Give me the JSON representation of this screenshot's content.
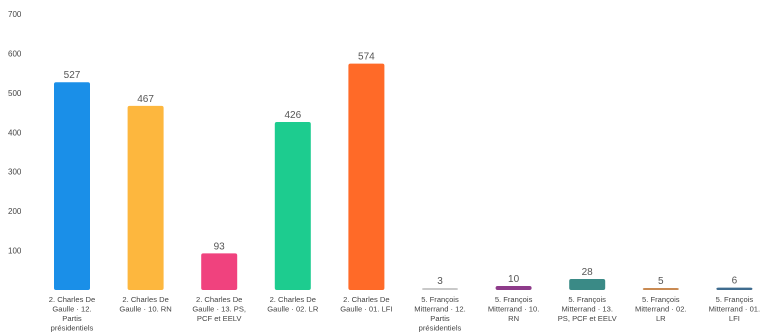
{
  "chart_data": {
    "type": "bar",
    "categories": [
      [
        "2. Charles De",
        "Gaulle · 12.",
        "Partis",
        "présidentiels"
      ],
      [
        "2. Charles De",
        "Gaulle · 10. RN"
      ],
      [
        "2. Charles De",
        "Gaulle · 13. PS,",
        "PCF et EELV"
      ],
      [
        "2. Charles De",
        "Gaulle · 02. LR"
      ],
      [
        "2. Charles De",
        "Gaulle · 01. LFI"
      ],
      [
        "5. François",
        "Mitterrand · 12.",
        "Partis",
        "présidentiels"
      ],
      [
        "5. François",
        "Mitterrand · 10.",
        "RN"
      ],
      [
        "5. François",
        "Mitterrand · 13.",
        "PS, PCF et EELV"
      ],
      [
        "5. François",
        "Mitterrand · 02.",
        "LR"
      ],
      [
        "5. François",
        "Mitterrand · 01.",
        "LFI"
      ]
    ],
    "values": [
      527,
      467,
      93,
      426,
      574,
      3,
      10,
      28,
      5,
      6
    ],
    "colors": [
      "#1a8fe8",
      "#fdb73e",
      "#f0427e",
      "#1dcc8f",
      "#ff6a28",
      "#c9c9c9",
      "#8e3b8a",
      "#3a8a86",
      "#c98a52",
      "#3f6c8f"
    ],
    "ylim": [
      0,
      700
    ],
    "yticks": [
      100,
      200,
      300,
      400,
      500,
      600,
      700
    ],
    "grid": false,
    "legend": "none",
    "data_labels": true
  }
}
